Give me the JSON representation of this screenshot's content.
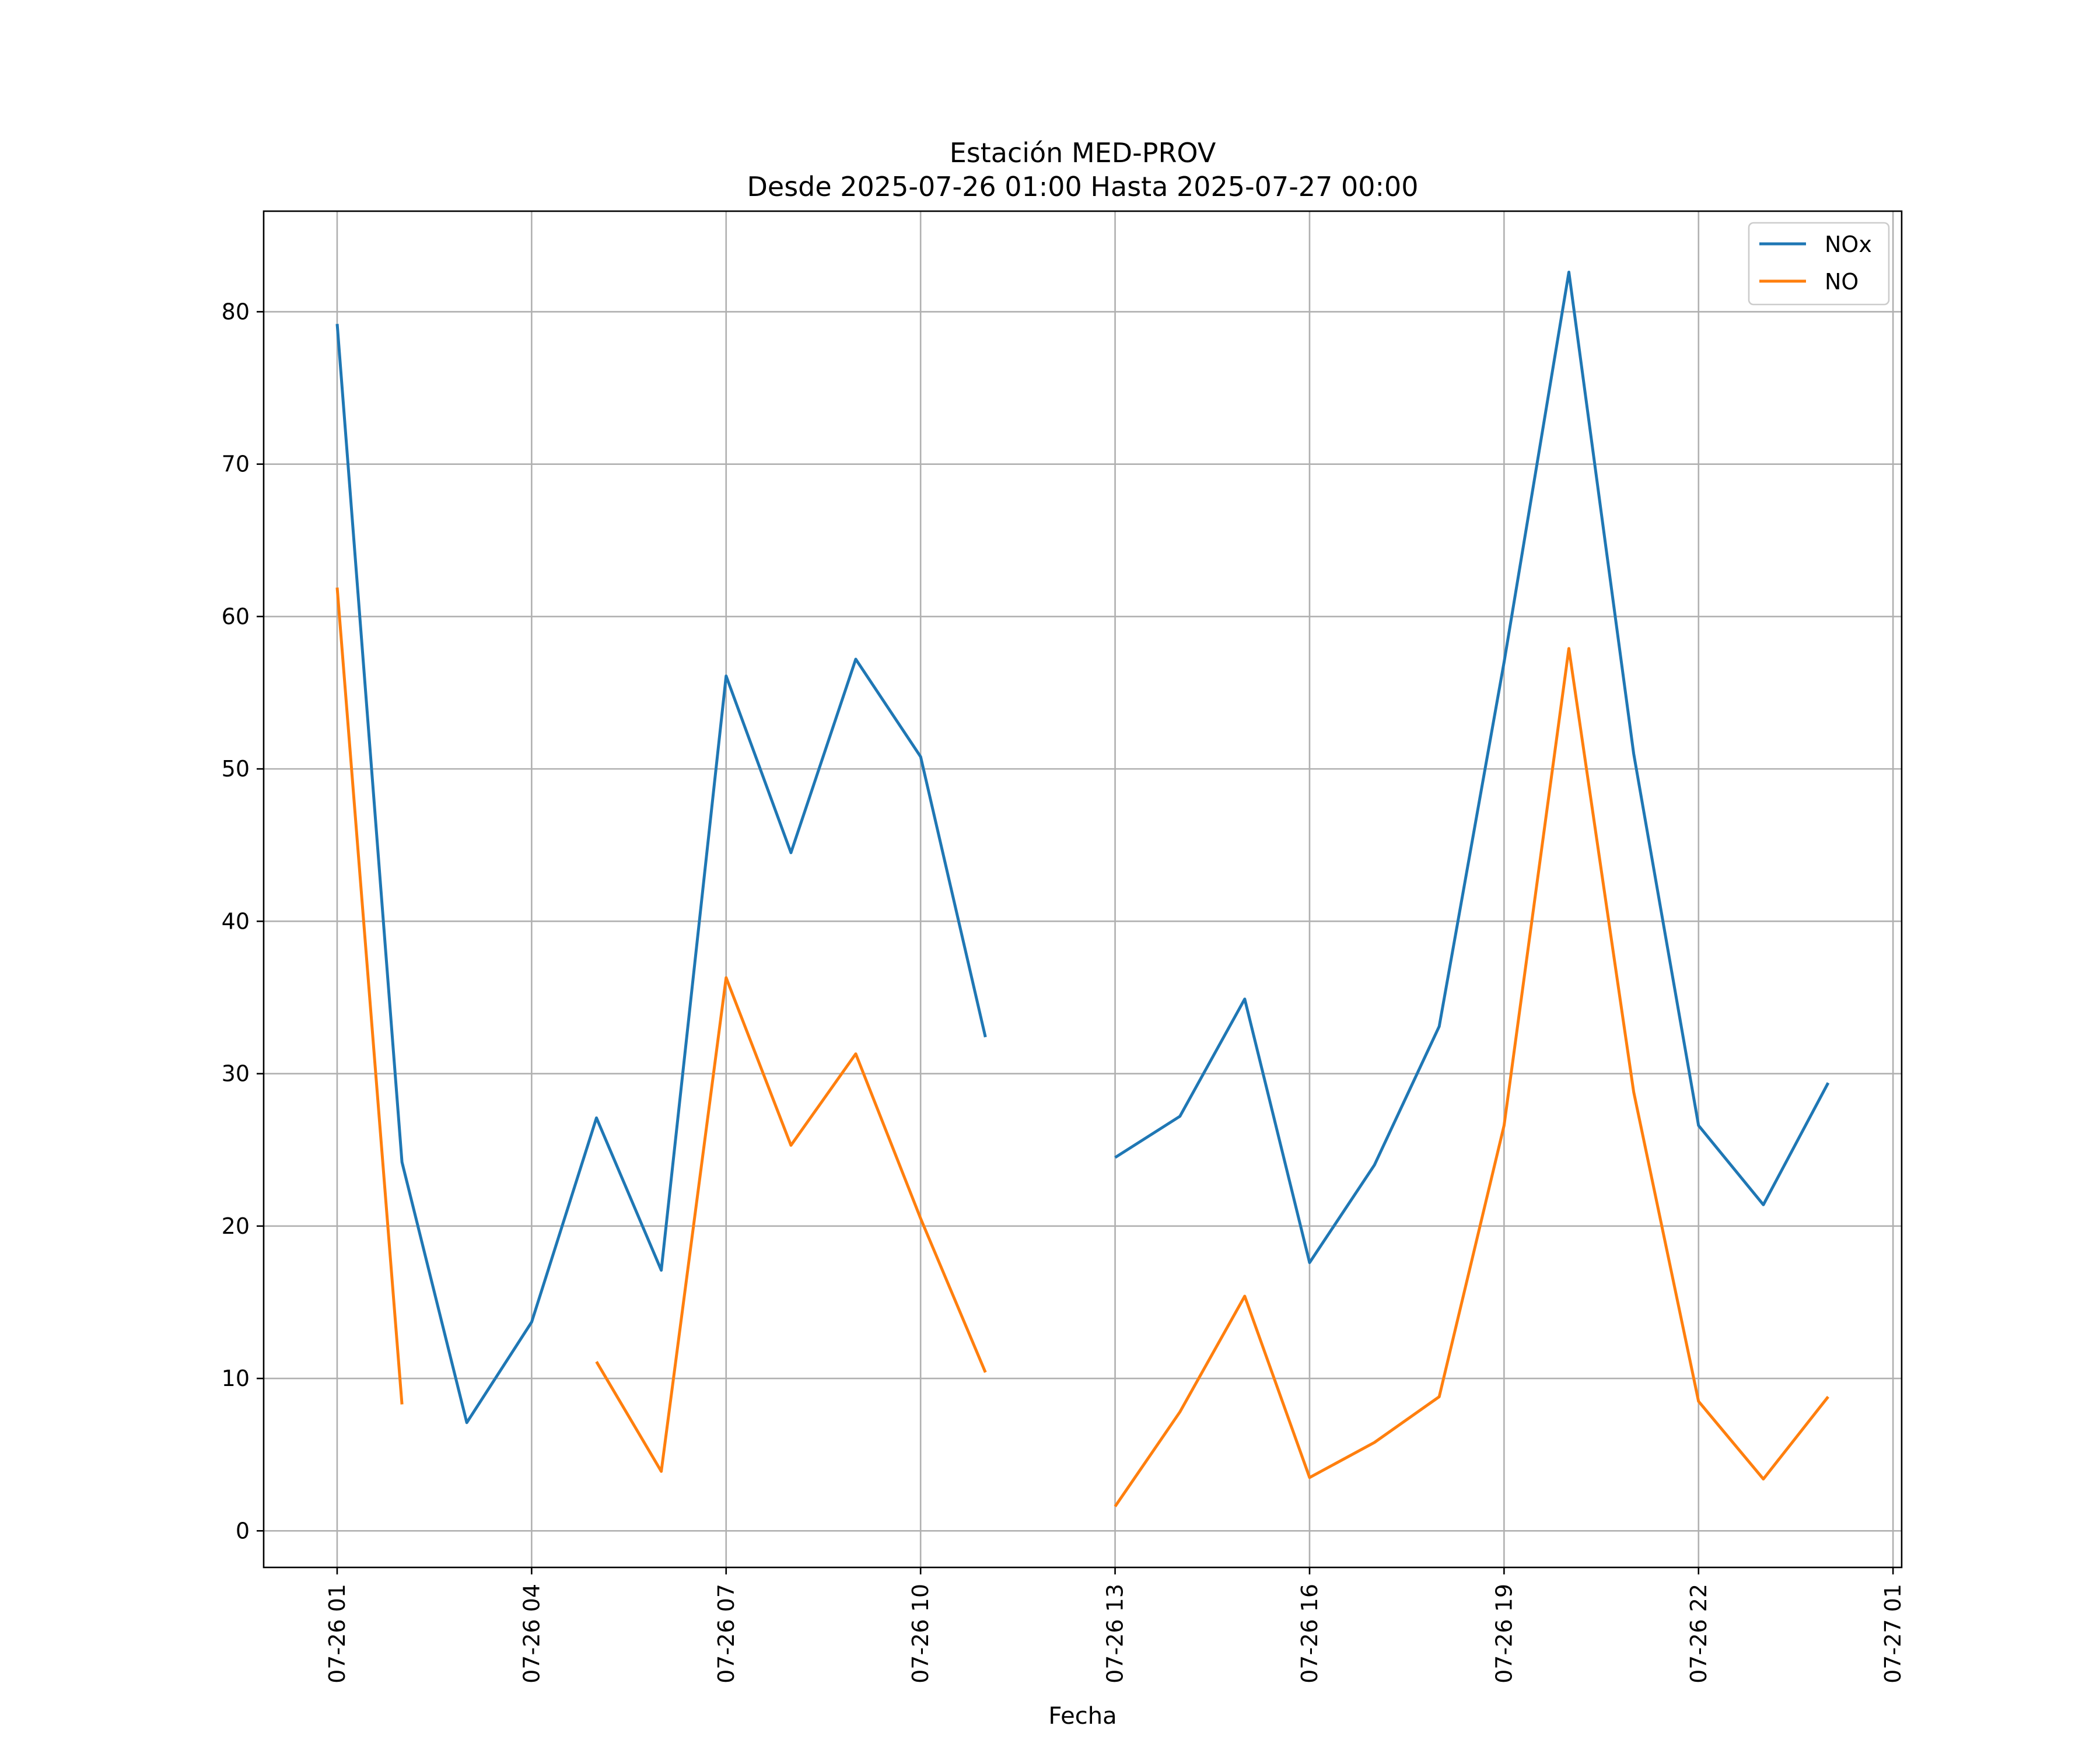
{
  "chart_data": {
    "type": "line",
    "title": "Estación MED-PROV",
    "subtitle": "Desde 2025-07-26 01:00 Hasta 2025-07-27 00:00",
    "xlabel": "Fecha",
    "ylabel": "",
    "x_ticks": [
      "07-26 01",
      "07-26 04",
      "07-26 07",
      "07-26 10",
      "07-26 13",
      "07-26 16",
      "07-26 19",
      "07-26 22",
      "07-27 01"
    ],
    "x": [
      "2025-07-26 01:00",
      "2025-07-26 02:00",
      "2025-07-26 03:00",
      "2025-07-26 04:00",
      "2025-07-26 05:00",
      "2025-07-26 06:00",
      "2025-07-26 07:00",
      "2025-07-26 08:00",
      "2025-07-26 09:00",
      "2025-07-26 10:00",
      "2025-07-26 11:00",
      "2025-07-26 12:00",
      "2025-07-26 13:00",
      "2025-07-26 14:00",
      "2025-07-26 15:00",
      "2025-07-26 16:00",
      "2025-07-26 17:00",
      "2025-07-26 18:00",
      "2025-07-26 19:00",
      "2025-07-26 20:00",
      "2025-07-26 21:00",
      "2025-07-26 22:00",
      "2025-07-26 23:00",
      "2025-07-27 00:00"
    ],
    "xlim": [
      "2025-07-25 23:52",
      "2025-07-27 01:08"
    ],
    "ylim": [
      -2.4,
      86.6
    ],
    "y_ticks": [
      0,
      10,
      20,
      30,
      40,
      50,
      60,
      70,
      80
    ],
    "grid": true,
    "legend": "top-right",
    "series": [
      {
        "name": "NOx",
        "color": "#1f77b4",
        "values": [
          79.2,
          24.2,
          7.1,
          13.7,
          27.1,
          17.1,
          56.1,
          44.5,
          57.2,
          50.8,
          32.4,
          null,
          24.5,
          27.2,
          34.9,
          17.6,
          24.0,
          33.1,
          57.0,
          82.6,
          51.0,
          26.6,
          21.4,
          29.4
        ]
      },
      {
        "name": "NO",
        "color": "#ff7f0e",
        "values": [
          61.9,
          8.3,
          null,
          null,
          11.1,
          3.9,
          36.3,
          25.3,
          31.3,
          20.5,
          10.4,
          null,
          1.6,
          7.8,
          15.4,
          3.5,
          5.8,
          8.8,
          26.6,
          57.9,
          28.8,
          8.5,
          3.4,
          8.8
        ]
      }
    ]
  }
}
